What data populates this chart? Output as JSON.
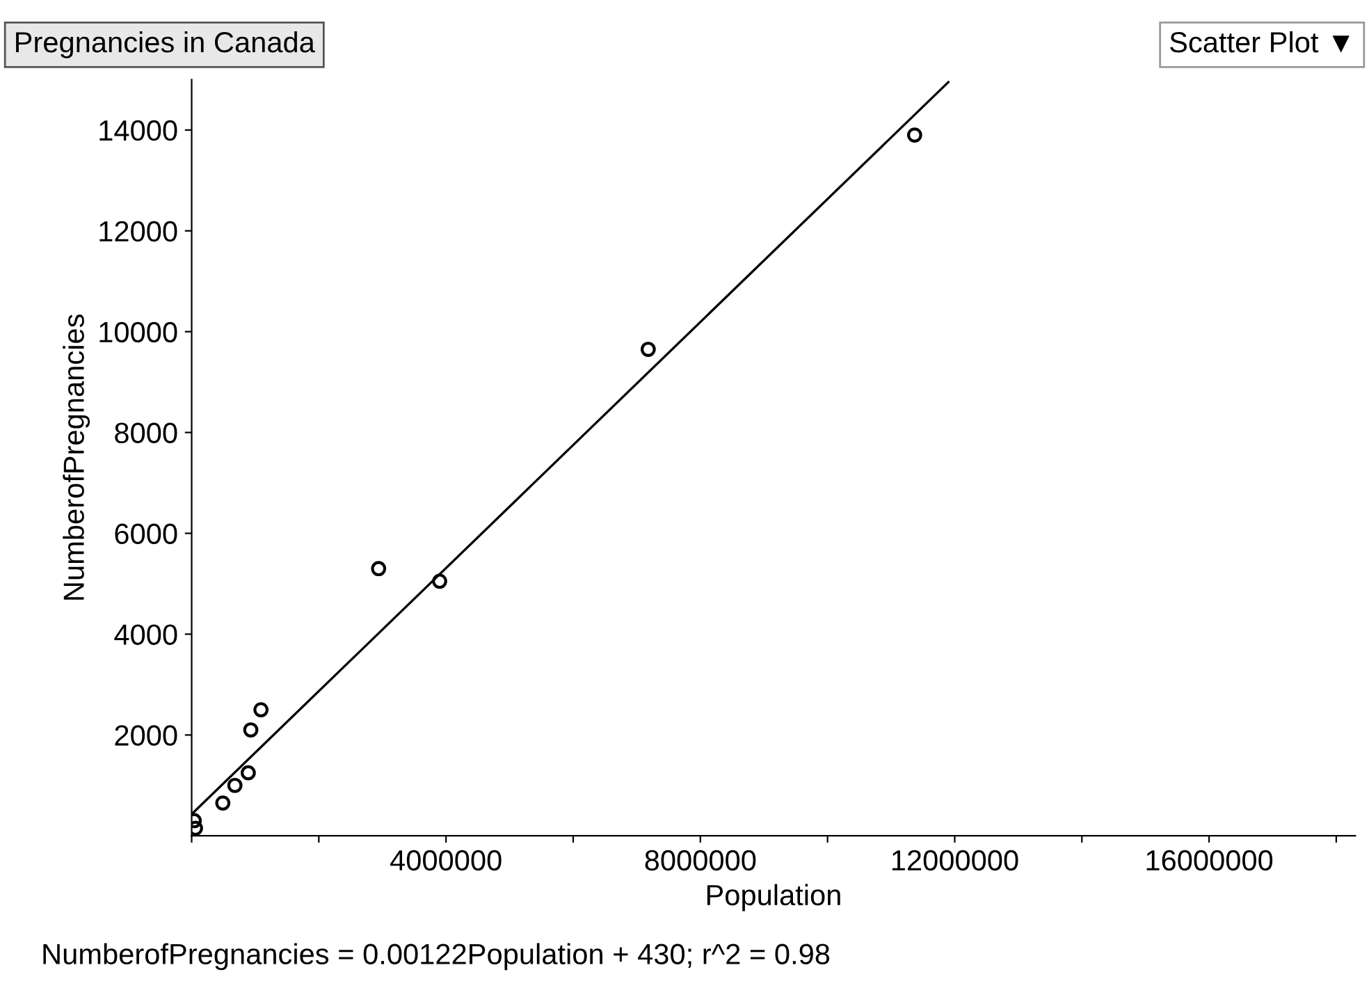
{
  "chart_data": {
    "type": "scatter",
    "title": "Pregnancies in Canada",
    "xlabel": "Population",
    "ylabel": "NumberofPregnancies",
    "annotations": [
      "Scatter Plot ▼",
      "NumberofPregnancies = 0.00122Population + 430; r^2 = 0.98"
    ],
    "series": [
      {
        "color": "#000000",
        "marker": "circle",
        "x": [
          1090000,
          930000,
          890000,
          680000,
          490000,
          40000,
          60000,
          2940000,
          3900000,
          7180000,
          11370000
        ],
        "values": [
          2500,
          2100,
          1250,
          1000,
          650,
          300,
          150,
          5300,
          5050,
          9650,
          13900
        ]
      },
      {
        "type": "line",
        "color": "#000000",
        "marker": "none",
        "line_style": "solid",
        "x": [
          0,
          11900000
        ],
        "values": [
          430,
          14950
        ]
      }
    ],
    "xlim": [
      0,
      18300000
    ],
    "ylim": [
      0,
      15000
    ],
    "xticks": [
      {
        "value": 0,
        "label": null
      },
      {
        "value": 2000000,
        "label": null
      },
      4000000,
      {
        "value": 6000000,
        "label": null
      },
      8000000,
      {
        "value": 10000000,
        "label": null
      },
      12000000,
      {
        "value": 14000000,
        "label": null
      },
      16000000,
      {
        "value": 18000000,
        "label": null
      }
    ],
    "yticks": [
      2000,
      4000,
      6000,
      8000,
      10000,
      12000,
      14000
    ],
    "grid": false,
    "legend": false
  }
}
